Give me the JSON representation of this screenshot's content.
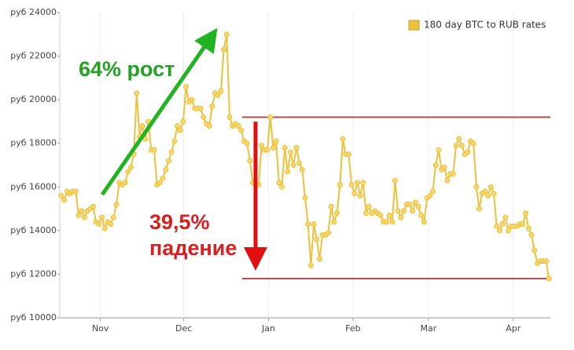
{
  "chart_data": {
    "type": "line",
    "x": [
      1,
      2,
      3,
      4,
      5,
      6,
      7,
      8,
      9,
      10,
      11,
      12,
      13,
      14,
      15,
      16,
      17,
      18,
      19,
      20,
      21,
      22,
      23,
      24,
      25,
      26,
      27,
      28,
      29,
      30,
      31,
      32,
      33,
      34,
      35,
      36,
      37,
      38,
      39,
      40,
      41,
      42,
      43,
      44,
      45,
      46,
      47,
      48,
      49,
      50,
      51,
      52,
      53,
      54,
      55,
      56,
      57,
      58,
      59,
      60,
      61,
      62,
      63,
      64,
      65,
      66,
      67,
      68,
      69,
      70,
      71,
      72,
      73,
      74,
      75,
      76,
      77,
      78,
      79,
      80,
      81,
      82,
      83,
      84,
      85,
      86,
      87,
      88,
      89,
      90,
      91,
      92,
      93,
      94,
      95,
      96,
      97,
      98,
      99,
      100,
      101,
      102,
      103,
      104,
      105,
      106,
      107,
      108,
      109,
      110,
      111,
      112,
      113,
      114,
      115,
      116,
      117,
      118,
      119,
      120,
      121,
      122,
      123,
      124,
      125,
      126,
      127,
      128,
      129,
      130,
      131,
      132,
      133,
      134,
      135,
      136,
      137,
      138,
      139,
      140,
      141,
      142,
      143,
      144,
      145,
      146,
      147,
      148,
      149,
      150,
      151,
      152,
      153,
      154,
      155,
      156,
      157,
      158,
      159,
      160,
      161,
      162,
      163,
      164,
      165,
      166,
      167,
      168,
      169
    ],
    "series": [
      {
        "name": "180 day BTC to RUB rates",
        "color": "#ecc13c",
        "values": [
          15600,
          15400,
          15800,
          15700,
          15800,
          15800,
          14700,
          14900,
          14600,
          14900,
          15000,
          15100,
          14400,
          14300,
          14600,
          14100,
          14400,
          14300,
          14600,
          15200,
          16200,
          16100,
          16200,
          16700,
          16900,
          17500,
          20300,
          18300,
          18800,
          18200,
          19000,
          17700,
          17700,
          16100,
          16200,
          16400,
          16800,
          17200,
          17600,
          18100,
          18800,
          18600,
          19000,
          20600,
          19900,
          20000,
          19600,
          19600,
          19600,
          19200,
          18900,
          18800,
          19700,
          20300,
          20200,
          20400,
          22300,
          23000,
          19200,
          18800,
          18900,
          18800,
          18600,
          18100,
          18000,
          17200,
          16200,
          16100,
          16100,
          17900,
          17700,
          17700,
          19200,
          17800,
          18100,
          16200,
          16000,
          17800,
          16700,
          17600,
          17000,
          17800,
          17100,
          16800,
          15500,
          14300,
          12400,
          14300,
          13600,
          12700,
          13800,
          13800,
          13900,
          15100,
          14400,
          14800,
          16100,
          18200,
          17500,
          17500,
          16100,
          15700,
          16200,
          15600,
          16200,
          14800,
          15100,
          14800,
          14900,
          14800,
          14700,
          14400,
          14400,
          14700,
          14400,
          16300,
          14900,
          14600,
          14900,
          15200,
          15200,
          14900,
          15300,
          15100,
          14700,
          14400,
          15500,
          15600,
          15800,
          17000,
          17700,
          16800,
          16900,
          16300,
          16600,
          16600,
          17900,
          18200,
          17900,
          17500,
          17600,
          18100,
          18000,
          16000,
          15000,
          15700,
          15800,
          15600,
          16000,
          15700,
          14200,
          14000,
          14300,
          14600,
          14000,
          14200,
          14200,
          14200,
          14300,
          14300,
          14800,
          14100,
          13800,
          13100,
          12500,
          12600,
          12600,
          12600,
          11800
        ]
      }
    ],
    "xlim": [
      0.5,
      169.5
    ],
    "xticks": [
      {
        "value": 14.5,
        "label": "Nov"
      },
      {
        "value": 43.2,
        "label": "Dec"
      },
      {
        "value": 72.4,
        "label": "Jan"
      },
      {
        "value": 101.5,
        "label": "Feb"
      },
      {
        "value": 127.5,
        "label": "Mar"
      },
      {
        "value": 156.7,
        "label": "Apr"
      }
    ],
    "ylim": [
      10000,
      24000
    ],
    "yticks": [
      {
        "value": 10000,
        "label": "руб 10000"
      },
      {
        "value": 12000,
        "label": "руб 12000"
      },
      {
        "value": 14000,
        "label": "руб 14000"
      },
      {
        "value": 16000,
        "label": "руб 16000"
      },
      {
        "value": 18000,
        "label": "руб 18000"
      },
      {
        "value": 20000,
        "label": "руб 20000"
      },
      {
        "value": 22000,
        "label": "руб 22000"
      },
      {
        "value": 24000,
        "label": "руб 24000"
      }
    ],
    "grid": true,
    "legend": "top-right",
    "reference_lines": [
      {
        "value": 19200,
        "color": "#b03030"
      },
      {
        "value": 11800,
        "color": "#b03030"
      }
    ],
    "annotations": [
      {
        "text": "64% рост",
        "color": "#22a322"
      },
      {
        "text": "39,5%",
        "color": "#d81e1e"
      },
      {
        "text": "падение",
        "color": "#d81e1e"
      }
    ]
  }
}
